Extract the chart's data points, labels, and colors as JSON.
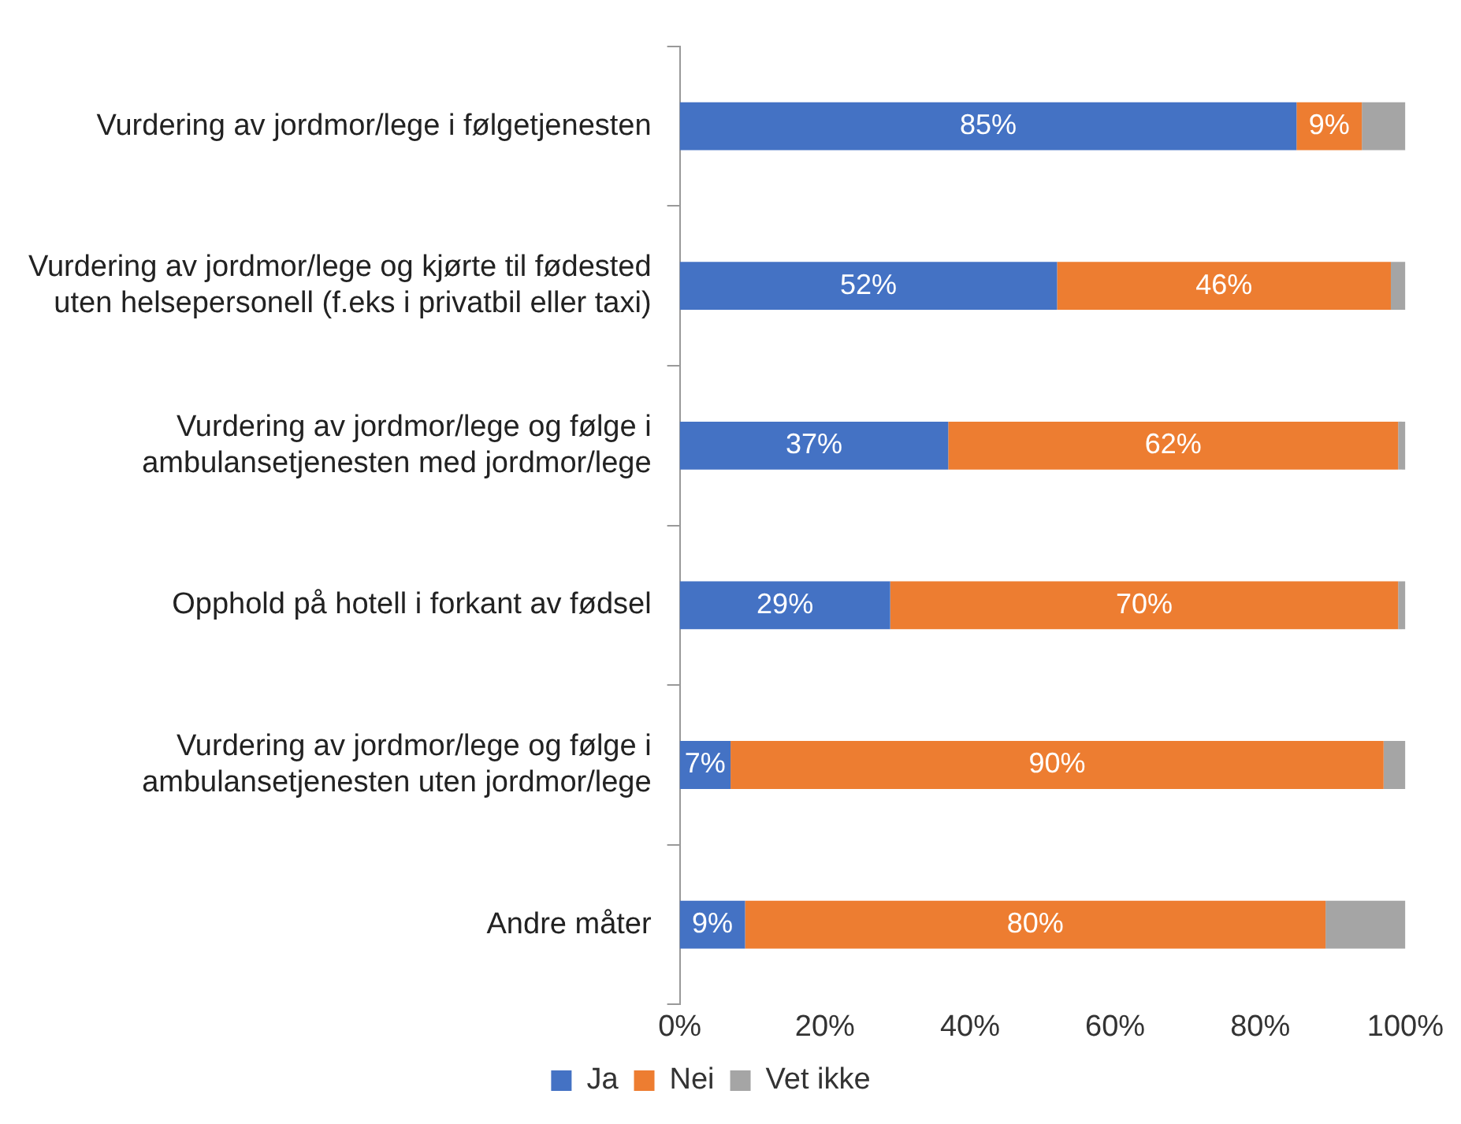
{
  "chart_data": {
    "type": "bar",
    "orientation": "horizontal",
    "stacked": true,
    "legend": "bottom",
    "grid": false,
    "categories": [
      "Vurdering av jordmor/lege i følgetjenesten",
      "Vurdering av jordmor/lege og kjørte til fødested uten helsepersonell (f.eks i privatbil eller taxi)",
      "Vurdering av jordmor/lege og følge i ambulansetjenesten med jordmor/lege",
      "Opphold på hotell i forkant av fødsel",
      "Vurdering av jordmor/lege og følge i ambulansetjenesten uten jordmor/lege",
      "Andre måter"
    ],
    "series": [
      {
        "name": "Ja",
        "color": "#4472c4",
        "values": [
          85,
          52,
          37,
          29,
          7,
          9
        ],
        "value_labels": [
          "85%",
          "52%",
          "37%",
          "29%",
          "7%",
          "9%"
        ]
      },
      {
        "name": "Nei",
        "color": "#ed7d31",
        "values": [
          9,
          46,
          62,
          70,
          90,
          80
        ],
        "value_labels": [
          "9%",
          "46%",
          "62%",
          "70%",
          "90%",
          "80%"
        ]
      },
      {
        "name": "Vet ikke",
        "color": "#a5a5a5",
        "values": [
          6,
          2,
          1,
          1,
          3,
          11
        ],
        "value_labels": [
          null,
          null,
          null,
          null,
          null,
          null
        ]
      }
    ],
    "xlim": [
      0,
      100
    ],
    "xticks": [
      {
        "value": 0,
        "label": "0%"
      },
      {
        "value": 20,
        "label": "20%"
      },
      {
        "value": 40,
        "label": "40%"
      },
      {
        "value": 60,
        "label": "60%"
      },
      {
        "value": 80,
        "label": "80%"
      },
      {
        "value": 100,
        "label": "100%"
      }
    ]
  }
}
